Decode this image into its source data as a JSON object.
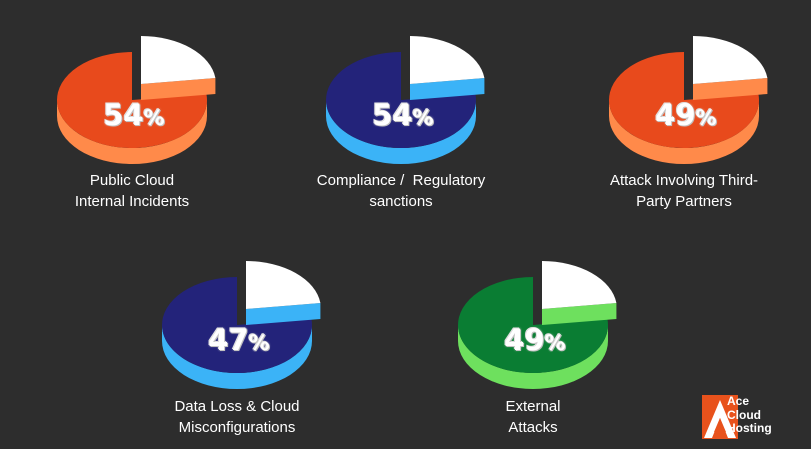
{
  "chart_data": [
    {
      "type": "pie",
      "value": 54,
      "value_label": "54",
      "unit": "%",
      "label_lines": [
        "Public Cloud",
        "Internal Incidents"
      ],
      "top_color": "#e84a1c",
      "side_color": "#ff8a4a"
    },
    {
      "type": "pie",
      "value": 54,
      "value_label": "54",
      "unit": "%",
      "label_lines": [
        "Compliance /  Regulatory",
        "sanctions"
      ],
      "top_color": "#23237a",
      "side_color": "#3bb3f7"
    },
    {
      "type": "pie",
      "value": 49,
      "value_label": "49",
      "unit": "%",
      "label_lines": [
        "Attack Involving Third-",
        "Party Partners"
      ],
      "top_color": "#e84a1c",
      "side_color": "#ff8a4a"
    },
    {
      "type": "pie",
      "value": 47,
      "value_label": "47",
      "unit": "%",
      "label_lines": [
        "Data Loss & Cloud",
        "Misconfigurations"
      ],
      "top_color": "#23237a",
      "side_color": "#3bb3f7"
    },
    {
      "type": "pie",
      "value": 49,
      "value_label": "49",
      "unit": "%",
      "label_lines": [
        "External",
        "Attacks"
      ],
      "top_color": "#0a7d33",
      "side_color": "#6ee05e"
    }
  ],
  "colors": {
    "background": "#2d2d2d",
    "slice_top": "#ffffff",
    "slice_side": "#cfcfcf",
    "logo_orange": "#e8521c"
  },
  "logo": {
    "lines": [
      "Ace",
      "Cloud",
      "Hosting"
    ],
    "icon": "ace-logo-icon"
  }
}
